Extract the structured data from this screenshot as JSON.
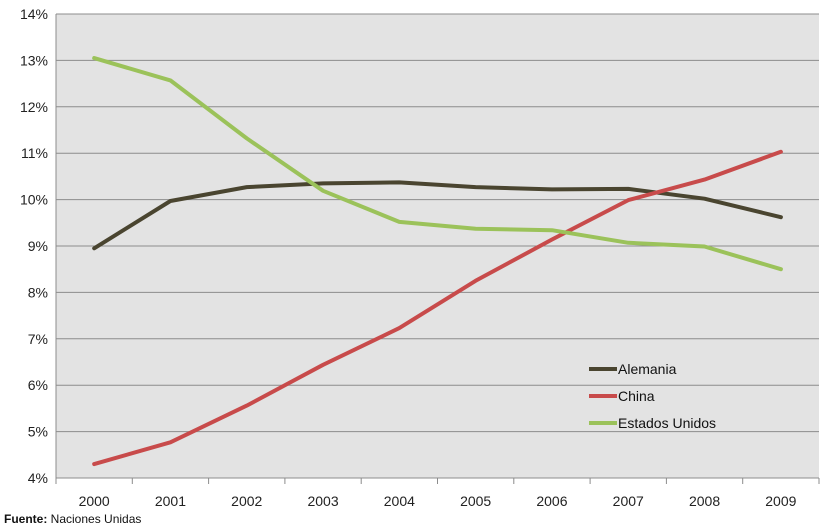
{
  "chart_data": {
    "type": "line",
    "title": "",
    "xlabel": "",
    "ylabel": "",
    "x": [
      "2000",
      "2001",
      "2002",
      "2003",
      "2004",
      "2005",
      "2006",
      "2007",
      "2008",
      "2009"
    ],
    "ylim": [
      4,
      14
    ],
    "y_ticks": [
      "4%",
      "5%",
      "6%",
      "7%",
      "8%",
      "9%",
      "10%",
      "11%",
      "12%",
      "13%",
      "14%"
    ],
    "grid": true,
    "legend_position": "bottom-right",
    "series": [
      {
        "name": "Alemania",
        "color": "#4a4530",
        "values": [
          8.95,
          9.97,
          10.27,
          10.35,
          10.37,
          10.27,
          10.22,
          10.23,
          10.02,
          9.62
        ]
      },
      {
        "name": "China",
        "color": "#c84b4b",
        "values": [
          4.3,
          4.77,
          5.56,
          6.44,
          7.23,
          8.25,
          9.14,
          9.99,
          10.43,
          11.03
        ]
      },
      {
        "name": "Estados Unidos",
        "color": "#9bc25a",
        "values": [
          13.05,
          12.57,
          11.32,
          10.19,
          9.52,
          9.37,
          9.34,
          9.07,
          8.99,
          8.5
        ]
      }
    ],
    "plot_background": "#e3e3e3",
    "gridline_color": "#8c8c8c"
  },
  "footnote": {
    "label": "Fuente:",
    "text": " Naciones Unidas"
  }
}
